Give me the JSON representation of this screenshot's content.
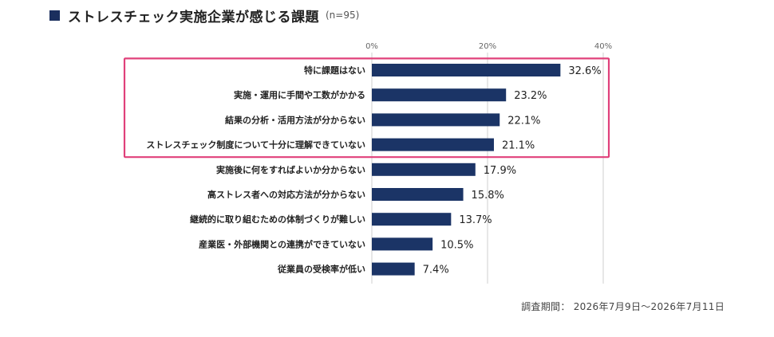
{
  "title": "ストレスチェック実施企業が感じる課題",
  "sample": "(n=95)",
  "footnote": "調査期間： 2026年7月9日〜2026年7月11日",
  "colors": {
    "bar": "#1b3466",
    "highlight": "#e0407a",
    "grid": "#cfcfcf",
    "title_square": "#1b2f5e"
  },
  "chart_data": {
    "type": "bar",
    "orientation": "horizontal",
    "title": "ストレスチェック実施企業が感じる課題",
    "xlim": [
      0,
      40
    ],
    "ticks": [
      "0%",
      "20%",
      "40%"
    ],
    "tick_values": [
      0,
      20,
      40
    ],
    "grid": true,
    "categories": [
      "特に課題はない",
      "実施・運用に手間や工数がかかる",
      "結果の分析・活用方法が分からない",
      "ストレスチェック制度について十分に理解できていない",
      "実施後に何をすればよいか分からない",
      "高ストレス者への対応方法が分からない",
      "継続的に取り組むための体制づくりが難しい",
      "産業医・外部機関との連携ができていない",
      "従業員の受検率が低い"
    ],
    "values": [
      32.6,
      23.2,
      22.1,
      21.1,
      17.9,
      15.8,
      13.7,
      10.5,
      7.4
    ],
    "value_labels": [
      "32.6%",
      "23.2%",
      "22.1%",
      "21.1%",
      "17.9%",
      "15.8%",
      "13.7%",
      "10.5%",
      "7.4%"
    ],
    "highlighted_count": 4
  }
}
